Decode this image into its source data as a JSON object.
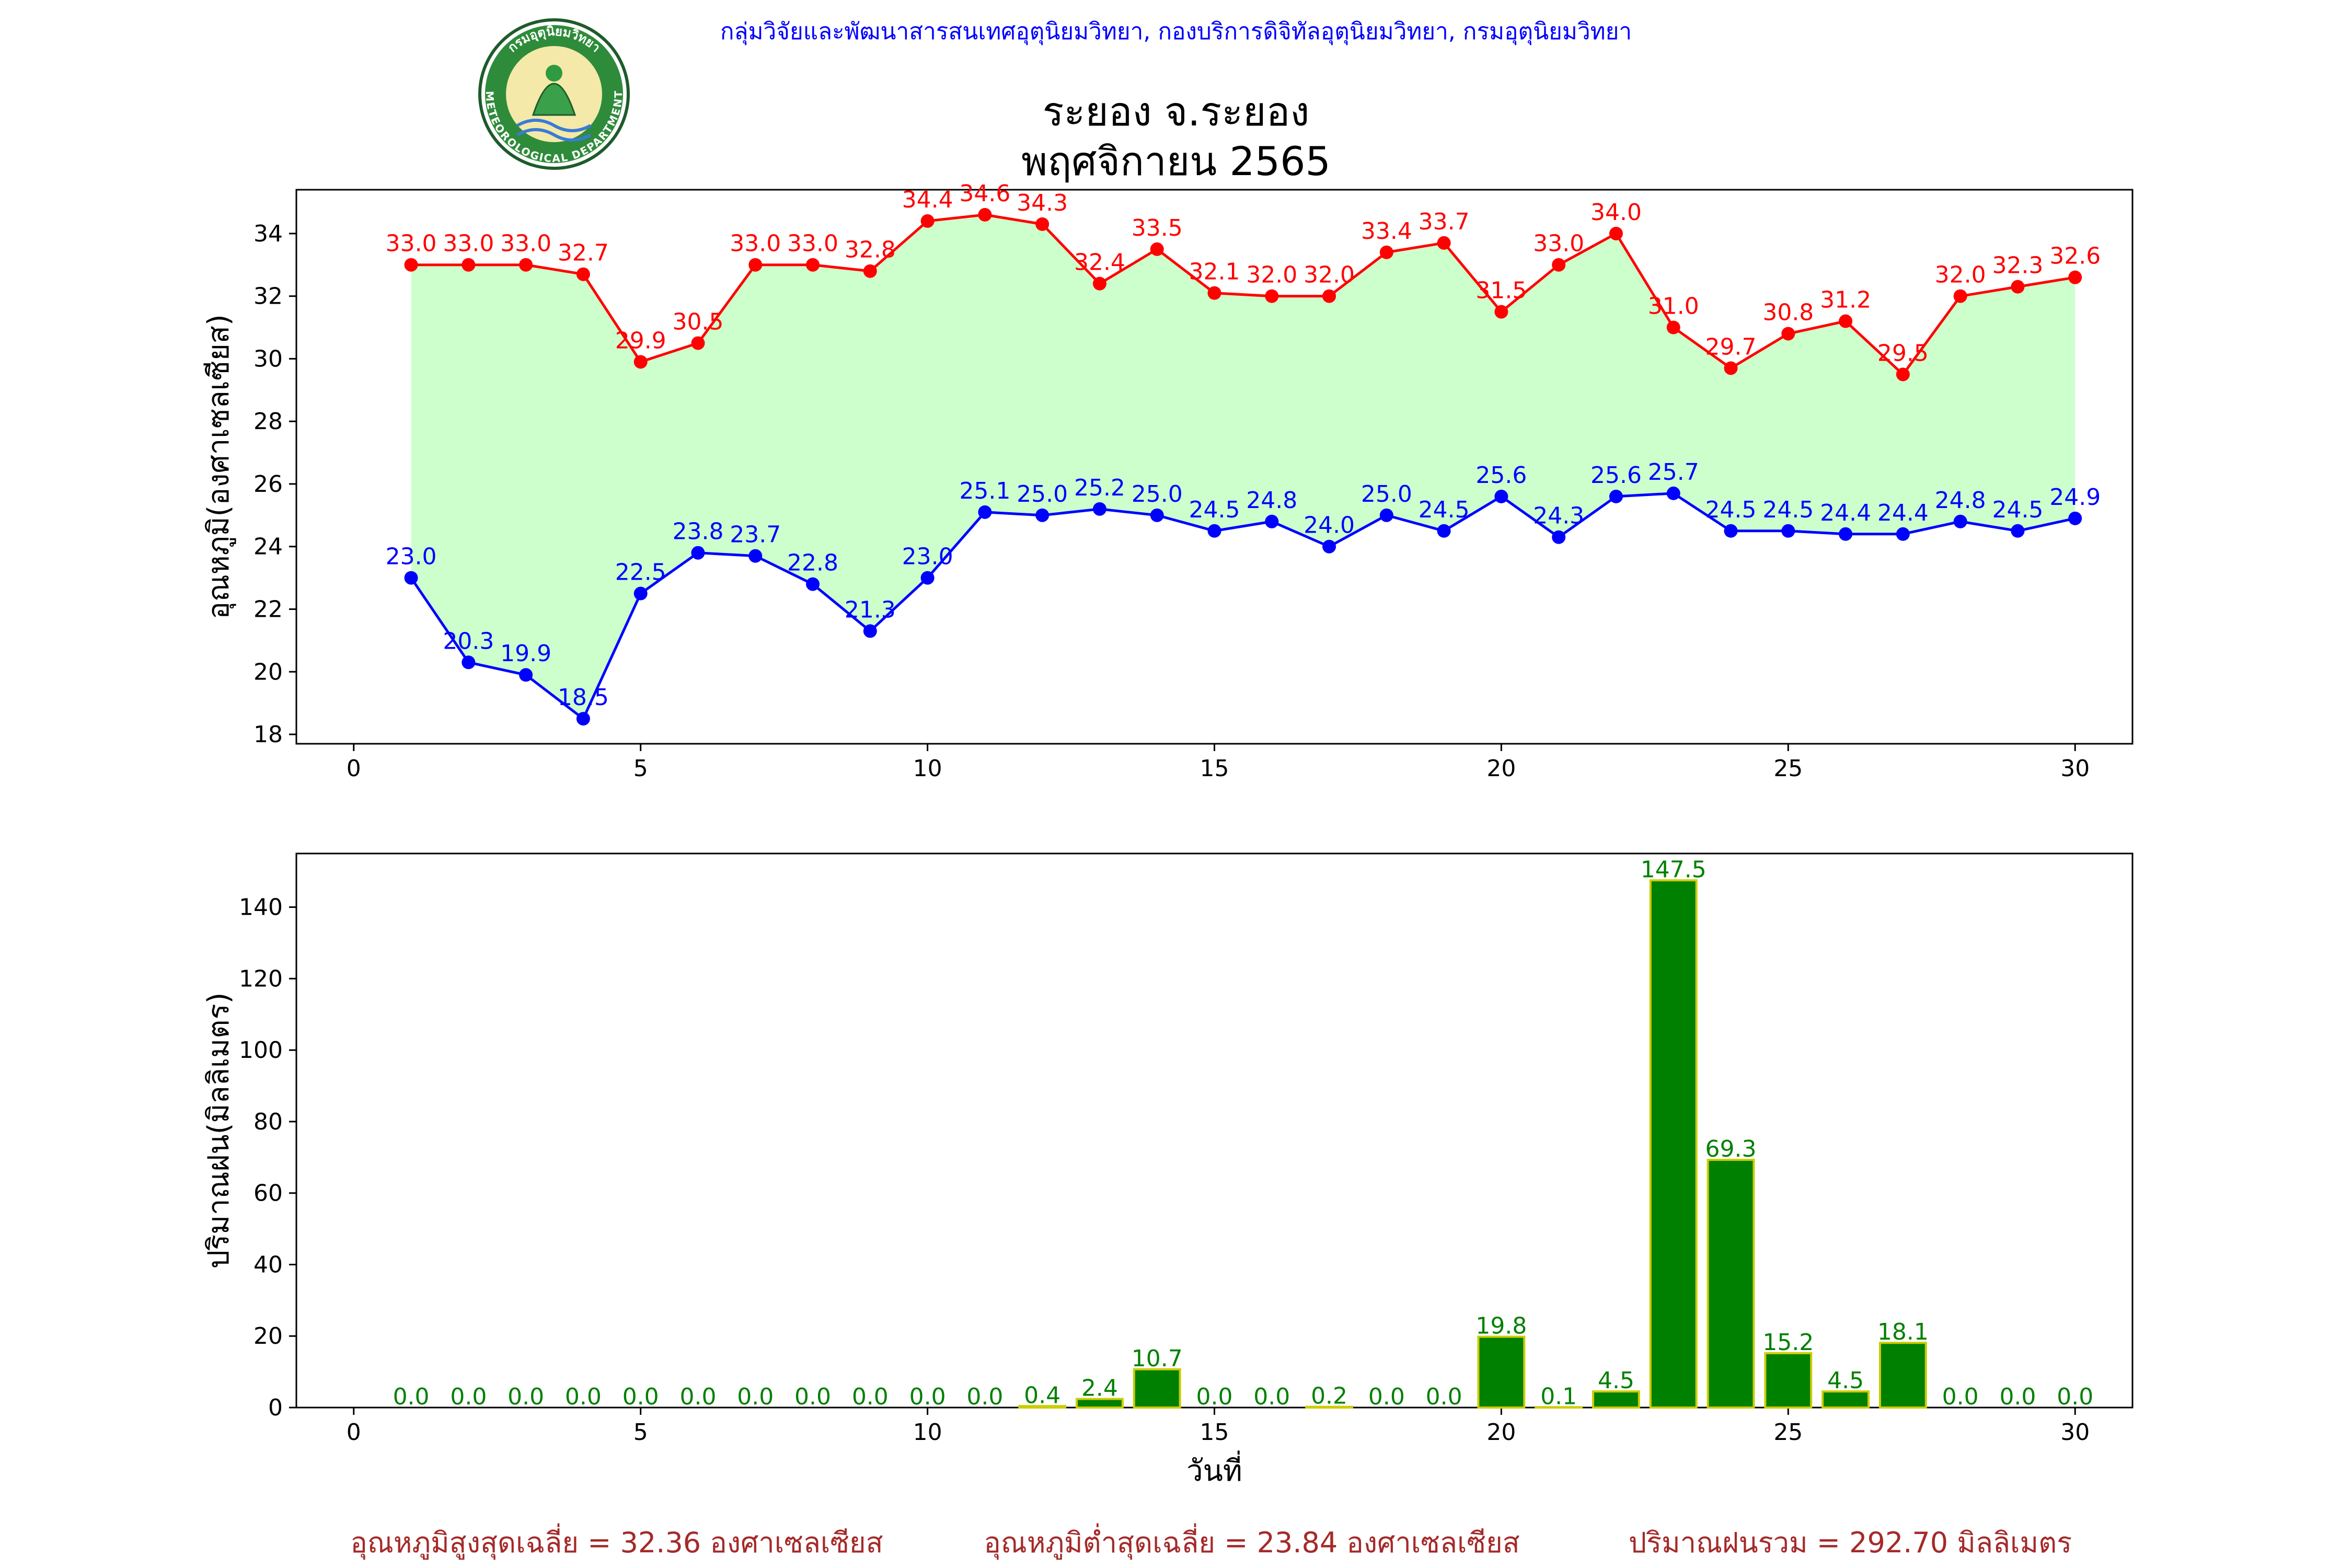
{
  "header": {
    "credit": "กลุ่มวิจัยและพัฒนาสารสนเทศอุตุนิยมวิทยา, กองบริการดิจิทัลอุตุนิยมวิทยา, กรมอุตุนิยมวิทยา",
    "title_line1": "ระยอง จ.ระยอง",
    "title_line2": "พฤศจิกายน 2565",
    "logo_top_text": "กรมอุตุนิยมวิทยา",
    "logo_bottom_text": "METEOROLOGICAL DEPARTMENT"
  },
  "colors": {
    "max": "#ff0000",
    "min": "#0000ff",
    "band": "#ccffcc",
    "rain_bar": "#008000",
    "rain_edge": "#cccc00",
    "rain_label": "#008000",
    "credit": "#0000ff",
    "summary": "#a52a2a"
  },
  "chart_data": [
    {
      "type": "line",
      "ylabel": "อุณหภูมิ(องศาเซลเซียส)",
      "xlabel": "",
      "xlim": [
        -1,
        31
      ],
      "ylim": [
        17.7,
        35.4
      ],
      "xticks": [
        0,
        5,
        10,
        15,
        20,
        25,
        30
      ],
      "yticks": [
        18,
        20,
        22,
        24,
        26,
        28,
        30,
        32,
        34
      ],
      "grid": false,
      "x": [
        1,
        2,
        3,
        4,
        5,
        6,
        7,
        8,
        9,
        10,
        11,
        12,
        13,
        14,
        15,
        16,
        17,
        18,
        19,
        20,
        21,
        22,
        23,
        24,
        25,
        26,
        27,
        28,
        29,
        30
      ],
      "series": [
        {
          "key": "max",
          "values": [
            33.0,
            33.0,
            33.0,
            32.7,
            29.9,
            30.5,
            33.0,
            33.0,
            32.8,
            34.4,
            34.6,
            34.3,
            32.4,
            33.5,
            32.1,
            32.0,
            32.0,
            33.4,
            33.7,
            31.5,
            33.0,
            34.0,
            31.0,
            29.7,
            30.8,
            31.2,
            29.5,
            32.0,
            32.3,
            32.6
          ]
        },
        {
          "key": "min",
          "values": [
            23.0,
            20.3,
            19.9,
            18.5,
            22.5,
            23.8,
            23.7,
            22.8,
            21.3,
            23.0,
            25.1,
            25.0,
            25.2,
            25.0,
            24.5,
            24.8,
            24.0,
            25.0,
            24.5,
            25.6,
            24.3,
            25.6,
            25.7,
            24.5,
            24.5,
            24.4,
            24.4,
            24.8,
            24.5,
            24.9
          ]
        }
      ]
    },
    {
      "type": "bar",
      "ylabel": "ปริมาณฝน(มิลลิเมตร)",
      "xlabel": "วันที่",
      "xlim": [
        -1,
        31
      ],
      "ylim": [
        0,
        155
      ],
      "xticks": [
        0,
        5,
        10,
        15,
        20,
        25,
        30
      ],
      "yticks": [
        0,
        20,
        40,
        60,
        80,
        100,
        120,
        140
      ],
      "grid": false,
      "categories": [
        1,
        2,
        3,
        4,
        5,
        6,
        7,
        8,
        9,
        10,
        11,
        12,
        13,
        14,
        15,
        16,
        17,
        18,
        19,
        20,
        21,
        22,
        23,
        24,
        25,
        26,
        27,
        28,
        29,
        30
      ],
      "values": [
        0.0,
        0.0,
        0.0,
        0.0,
        0.0,
        0.0,
        0.0,
        0.0,
        0.0,
        0.0,
        0.0,
        0.4,
        2.4,
        10.7,
        0.0,
        0.0,
        0.2,
        0.0,
        0.0,
        19.8,
        0.1,
        4.5,
        147.5,
        69.3,
        15.2,
        4.5,
        18.1,
        0.0,
        0.0,
        0.0
      ]
    }
  ],
  "summary": {
    "avg_max": "อุณหภูมิสูงสุดเฉลี่ย = 32.36 องศาเซลเซียส",
    "avg_min": "อุณหภูมิต่ำสุดเฉลี่ย = 23.84 องศาเซลเซียส",
    "total_rain": "ปริมาณฝนรวม = 292.70 มิลลิเมตร"
  }
}
